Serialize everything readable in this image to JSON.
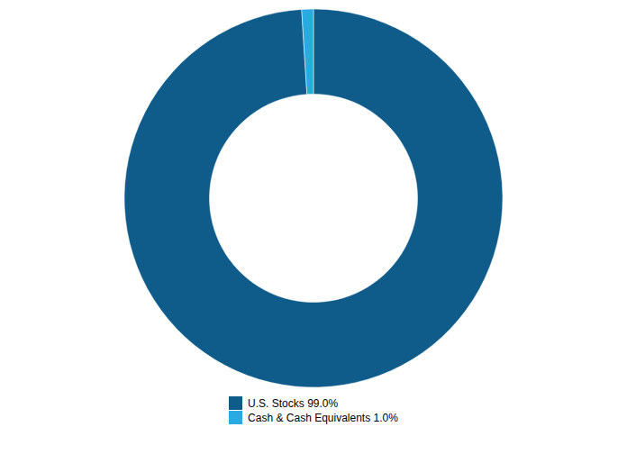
{
  "chart_data": {
    "type": "pie",
    "categories": [
      "U.S. Stocks 99.0%",
      "Cash & Cash Equivalents 1.0%"
    ],
    "values": [
      99.0,
      1.0
    ],
    "colors": [
      "#0f5c8a",
      "#29abe2"
    ],
    "legend": "bottom"
  }
}
